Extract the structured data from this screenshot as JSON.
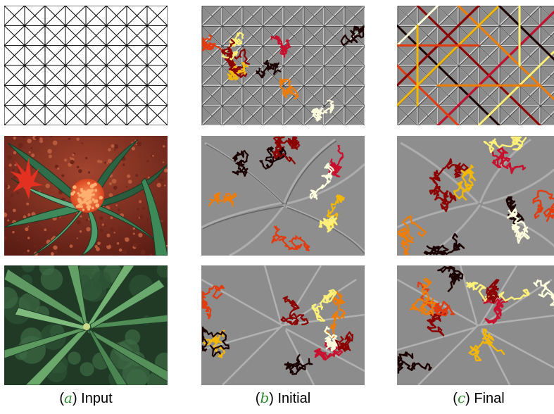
{
  "figure": {
    "columns": [
      {
        "letter": "a",
        "label": "Input"
      },
      {
        "letter": "b",
        "label": "Initial"
      },
      {
        "letter": "c",
        "label": "Final"
      }
    ],
    "rows": [
      {
        "content": "triangle-grid"
      },
      {
        "content": "bromeliad-plant-photo"
      },
      {
        "content": "leafy-plant-photo"
      }
    ],
    "path_colors": [
      "#1a0000",
      "#8b0000",
      "#c8102e",
      "#e23b0e",
      "#f07c00",
      "#f5b800",
      "#fff07a",
      "#ffffe0"
    ]
  }
}
